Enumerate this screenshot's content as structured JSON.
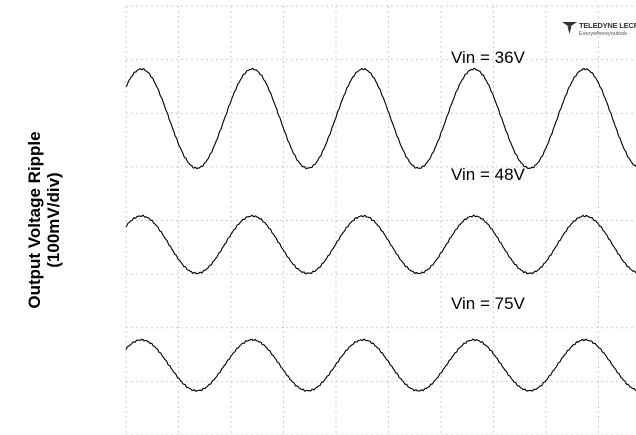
{
  "chart_data": {
    "type": "line",
    "title": "",
    "xlabel": "",
    "ylabel": [
      "Output Voltage Ripple",
      "(100mV/div)"
    ],
    "grid": true,
    "grid_divisions": {
      "x": 10,
      "y": 8
    },
    "line_color": "#000000",
    "grid_color": "#cfcfcf",
    "series": [
      {
        "name": "Vin = 36V",
        "waveform": "sine",
        "cycles_visible": 4.6,
        "peak_to_peak_div": 1.85,
        "center_div_from_top": 2.1,
        "phase_deg": 40
      },
      {
        "name": "Vin = 48V",
        "waveform": "sine",
        "cycles_visible": 4.6,
        "peak_to_peak_div": 1.07,
        "center_div_from_top": 4.45,
        "phase_deg": 40
      },
      {
        "name": "Vin = 75V",
        "waveform": "sine",
        "cycles_visible": 4.6,
        "peak_to_peak_div": 0.95,
        "center_div_from_top": 6.7,
        "phase_deg": 40
      }
    ]
  },
  "logo": {
    "brand": "TELEDYNE LECROY",
    "tagline": "Everywhereyoulook"
  }
}
